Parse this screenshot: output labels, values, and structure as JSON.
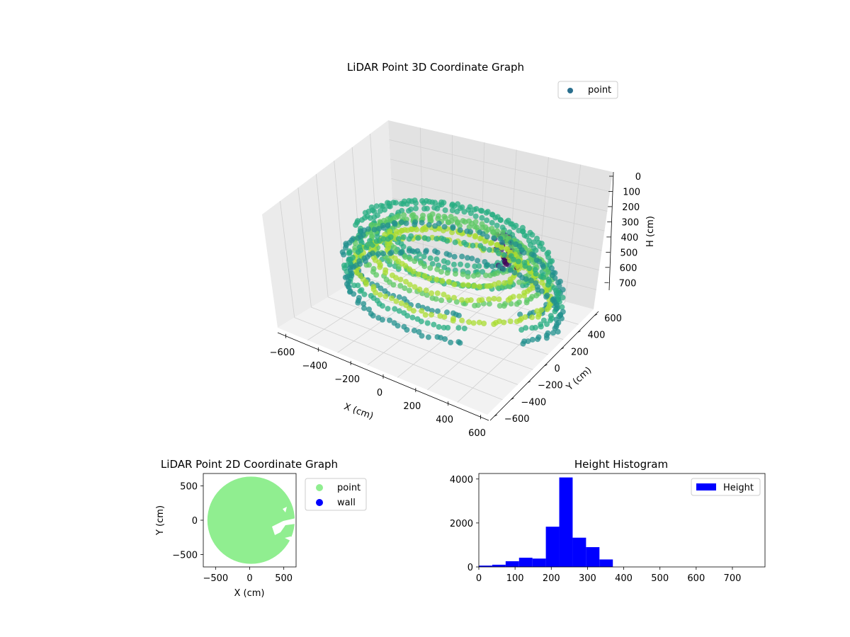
{
  "chart_data": [
    {
      "type": "scatter",
      "projection": "3d",
      "title": "LiDAR Point 3D Coordinate Graph",
      "xlabel": "X (cm)",
      "ylabel": "Y (cm)",
      "zlabel": "H (cm)",
      "x_ticks": [
        "−600",
        "−400",
        "−200",
        "0",
        "200",
        "400",
        "600"
      ],
      "y_ticks": [
        "−600",
        "−400",
        "−200",
        "0",
        "200",
        "400",
        "600"
      ],
      "z_ticks": [
        "0",
        "100",
        "200",
        "300",
        "400",
        "500",
        "600",
        "700"
      ],
      "xlim": [
        -650,
        650
      ],
      "ylim": [
        -650,
        650
      ],
      "zlim": [
        0,
        750
      ],
      "z_inverted": true,
      "colormap": "viridis",
      "legend": {
        "entries": [
          "point"
        ],
        "placement": "top-right"
      },
      "series": [
        {
          "name": "point",
          "color": "#2a6f8e",
          "rings": [
            {
              "radius": 620,
              "z": [
                330,
                470
              ]
            },
            {
              "radius": 560,
              "z": [
                200,
                380
              ]
            },
            {
              "radius": 470,
              "z": [
                160,
                300
              ]
            },
            {
              "radius": 380,
              "z": [
                160,
                260
              ]
            }
          ],
          "cluster": {
            "x": 250,
            "y": 120,
            "z": [
              100,
              260
            ]
          }
        }
      ]
    },
    {
      "type": "scatter",
      "title": "LiDAR Point 2D Coordinate Graph",
      "xlabel": "X (cm)",
      "ylabel": "Y (cm)",
      "x_ticks": [
        "−500",
        "0",
        "500"
      ],
      "y_ticks": [
        "500",
        "0",
        "−500"
      ],
      "xlim": [
        -680,
        680
      ],
      "ylim": [
        -680,
        680
      ],
      "legend": {
        "entries": [
          "point",
          "wall"
        ],
        "placement": "outside-right"
      },
      "series": [
        {
          "name": "point",
          "color": "#90ee90",
          "shape": "disc",
          "center": [
            20,
            0
          ],
          "radius": 640
        },
        {
          "name": "wall",
          "color": "#0000ff",
          "points": []
        }
      ]
    },
    {
      "type": "bar",
      "title": "Height Histogram",
      "xlabel": "",
      "ylabel": "",
      "x_ticks": [
        "0",
        "100",
        "200",
        "300",
        "400",
        "500",
        "600",
        "700"
      ],
      "y_ticks": [
        "0",
        "2000",
        "4000"
      ],
      "xlim": [
        0,
        790
      ],
      "ylim": [
        0,
        4250
      ],
      "bin_width": 37,
      "bins": [
        0,
        37,
        74,
        111,
        148,
        185,
        222,
        259,
        296,
        333
      ],
      "values": [
        60,
        100,
        260,
        420,
        380,
        1830,
        4070,
        1330,
        900,
        340
      ],
      "legend": {
        "entries": [
          "Height"
        ],
        "placement": "top-right"
      },
      "series": [
        {
          "name": "Height",
          "color": "#0000ff"
        }
      ]
    }
  ]
}
